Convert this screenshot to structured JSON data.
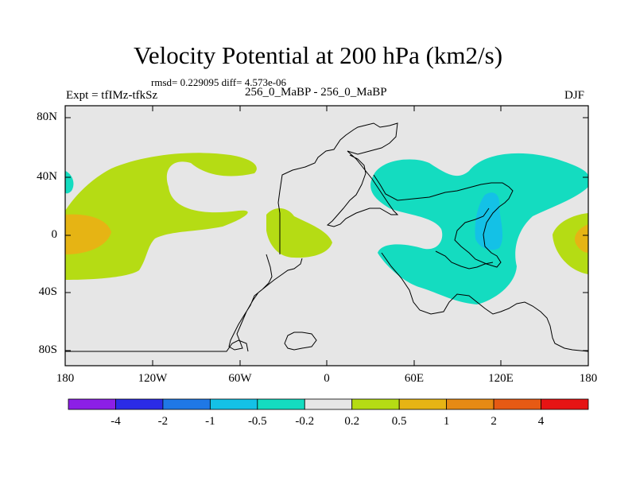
{
  "title": "Velocity Potential at 200 hPa (km2/s)",
  "stats_line": "rmsd= 0.229095 diff= 4.573e-06",
  "experiment": "Expt = tfIMz-tfkSz",
  "case_label": "256_0_MaBP - 256_0_MaBP",
  "season": "DJF",
  "lat_ticks": [
    "80N",
    "40N",
    "0",
    "40S",
    "80S"
  ],
  "lon_ticks": [
    "180",
    "120W",
    "60W",
    "0",
    "60E",
    "120E",
    "180"
  ],
  "colorbar": {
    "colors": [
      "#8c1fe6",
      "#2b2be6",
      "#1f78e6",
      "#14c1e6",
      "#14dcc0",
      "#e6e6e6",
      "#b5dc14",
      "#e6b414",
      "#e68a14",
      "#e65a14",
      "#e61414"
    ],
    "labels": [
      "-4",
      "-2",
      "-1",
      "-0.5",
      "-0.2",
      "0.2",
      "0.5",
      "1",
      "2",
      "4"
    ]
  },
  "colors": {
    "background": "#e6e6e6",
    "positive_low": "#b5dc14",
    "positive_mid": "#e6b414",
    "negative_low": "#14dcc0",
    "negative_mid": "#14c1e6"
  }
}
